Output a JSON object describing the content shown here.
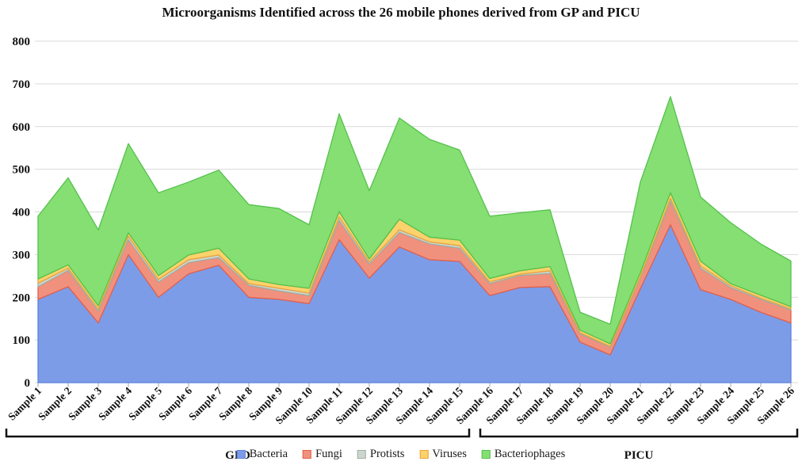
{
  "title": "Microorganisms Identified across the 26 mobile phones derived from GP and PICU",
  "chart_data": {
    "type": "area",
    "stacked": true,
    "grid": true,
    "legend_position": "bottom",
    "ylim": [
      0,
      800
    ],
    "ytick_step": 100,
    "categories": [
      "Sample 1",
      "Sample 2",
      "Sample 3",
      "Sample 4",
      "Sample 5",
      "Sample 6",
      "Sample 7",
      "Sample 8",
      "Sample 9",
      "Sample 10",
      "Sample 11",
      "Sample 12",
      "Sample 13",
      "Sample 14",
      "Sample 15",
      "Sample 16",
      "Sample 17",
      "Sample 18",
      "Sample 19",
      "Sample 20",
      "Sample 21",
      "Sample 22",
      "Sample 23",
      "Sample 24",
      "Sample 25",
      "Sample 26"
    ],
    "series": [
      {
        "name": "Bacteria",
        "color": "#7D9CE8",
        "stroke": "#5B82DC",
        "values": [
          195,
          225,
          140,
          300,
          200,
          255,
          275,
          200,
          195,
          185,
          335,
          245,
          318,
          288,
          284,
          204,
          223,
          225,
          95,
          65,
          220,
          370,
          218,
          195,
          165,
          140
        ]
      },
      {
        "name": "Fungi",
        "color": "#F0917E",
        "stroke": "#E2604B",
        "values": [
          30,
          38,
          27,
          35,
          36,
          26,
          18,
          28,
          20,
          19,
          45,
          33,
          34,
          37,
          31,
          28,
          28,
          31,
          19,
          18,
          25,
          55,
          50,
          28,
          30,
          30
        ]
      },
      {
        "name": "Protists",
        "color": "#CDD6CE",
        "stroke": "#9FAFA3",
        "values": [
          8,
          5,
          5,
          8,
          6,
          7,
          6,
          4,
          6,
          6,
          8,
          5,
          6,
          5,
          6,
          4,
          3,
          6,
          3,
          2,
          3,
          7,
          5,
          4,
          3,
          3
        ]
      },
      {
        "name": "Viruses",
        "color": "#FBD26C",
        "stroke": "#EBA33C",
        "values": [
          10,
          8,
          8,
          8,
          9,
          11,
          16,
          11,
          9,
          11,
          13,
          7,
          25,
          11,
          13,
          8,
          8,
          10,
          6,
          6,
          9,
          13,
          12,
          5,
          7,
          5
        ]
      },
      {
        "name": "Bacteriophages",
        "color": "#86DF72",
        "stroke": "#54C14D",
        "values": [
          147,
          204,
          178,
          209,
          194,
          171,
          183,
          174,
          178,
          149,
          229,
          160,
          237,
          229,
          211,
          146,
          136,
          133,
          42,
          46,
          213,
          225,
          150,
          143,
          120,
          107
        ]
      }
    ],
    "groups": [
      {
        "label": "GPD",
        "from": 1,
        "to": 15
      },
      {
        "label": "PICU",
        "from": 16,
        "to": 26
      }
    ]
  }
}
